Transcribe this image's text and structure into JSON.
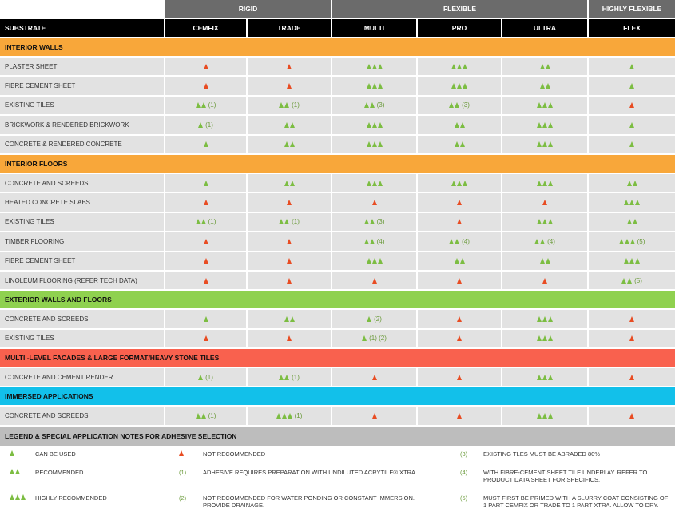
{
  "groups": {
    "rigid": "RIGID",
    "flexible": "FLEXIBLE",
    "highly_flexible": "HIGHLY FLEXIBLE"
  },
  "headers": [
    "SUBSTRATE",
    "CEMFIX",
    "TRADE",
    "MULTI",
    "PRO",
    "ULTRA",
    "FLEX"
  ],
  "colors": {
    "green_triangle": "#7cbd42",
    "red_triangle": "#e84c22",
    "header_bg": "#000000",
    "group_bg": "#6b6b6b",
    "row_bg": "#e2e2e2",
    "legend_bg": "#bdbdbd"
  },
  "sections": [
    {
      "title": "INTERIOR WALLS",
      "color": "#f8a73a",
      "rows": [
        {
          "name": "PLASTER SHEET",
          "cells": [
            [
              "r",
              ""
            ],
            [
              "r",
              ""
            ],
            [
              "g3",
              ""
            ],
            [
              "g3",
              ""
            ],
            [
              "g2",
              ""
            ],
            [
              "g1",
              ""
            ]
          ]
        },
        {
          "name": "FIBRE CEMENT SHEET",
          "cells": [
            [
              "r",
              ""
            ],
            [
              "r",
              ""
            ],
            [
              "g3",
              ""
            ],
            [
              "g3",
              ""
            ],
            [
              "g2",
              ""
            ],
            [
              "g1",
              ""
            ]
          ]
        },
        {
          "name": "EXISTING TILES",
          "cells": [
            [
              "g2",
              "(1)"
            ],
            [
              "g2",
              "(1)"
            ],
            [
              "g2",
              "(3)"
            ],
            [
              "g2",
              "(3)"
            ],
            [
              "g3",
              ""
            ],
            [
              "r",
              ""
            ]
          ]
        },
        {
          "name": "BRICKWORK & RENDERED BRICKWORK",
          "cells": [
            [
              "g1",
              "(1)"
            ],
            [
              "g2",
              ""
            ],
            [
              "g3",
              ""
            ],
            [
              "g2",
              ""
            ],
            [
              "g3",
              ""
            ],
            [
              "g1",
              ""
            ]
          ]
        },
        {
          "name": "CONCRETE & RENDERED CONCRETE",
          "cells": [
            [
              "g1",
              ""
            ],
            [
              "g2",
              ""
            ],
            [
              "g3",
              ""
            ],
            [
              "g2",
              ""
            ],
            [
              "g3",
              ""
            ],
            [
              "g1",
              ""
            ]
          ]
        }
      ]
    },
    {
      "title": "INTERIOR FLOORS",
      "color": "#f8a73a",
      "rows": [
        {
          "name": "CONCRETE AND SCREEDS",
          "cells": [
            [
              "g1",
              ""
            ],
            [
              "g2",
              ""
            ],
            [
              "g3",
              ""
            ],
            [
              "g3",
              ""
            ],
            [
              "g3",
              ""
            ],
            [
              "g2",
              ""
            ]
          ]
        },
        {
          "name": "HEATED CONCRETE SLABS",
          "cells": [
            [
              "r",
              ""
            ],
            [
              "r",
              ""
            ],
            [
              "r",
              ""
            ],
            [
              "r",
              ""
            ],
            [
              "r",
              ""
            ],
            [
              "g3",
              ""
            ]
          ]
        },
        {
          "name": "EXISTING TILES",
          "cells": [
            [
              "g2",
              "(1)"
            ],
            [
              "g2",
              "(1)"
            ],
            [
              "g2",
              "(3)"
            ],
            [
              "r",
              ""
            ],
            [
              "g3",
              ""
            ],
            [
              "g2",
              ""
            ]
          ]
        },
        {
          "name": "TIMBER FLOORING",
          "cells": [
            [
              "r",
              ""
            ],
            [
              "r",
              ""
            ],
            [
              "g2",
              "(4)"
            ],
            [
              "g2",
              "(4)"
            ],
            [
              "g2",
              "(4)"
            ],
            [
              "g3",
              "(5)"
            ]
          ]
        },
        {
          "name": "FIBRE CEMENT SHEET",
          "cells": [
            [
              "r",
              ""
            ],
            [
              "r",
              ""
            ],
            [
              "g3",
              ""
            ],
            [
              "g2",
              ""
            ],
            [
              "g2",
              ""
            ],
            [
              "g3",
              ""
            ]
          ]
        },
        {
          "name": "LINOLEUM FLOORING (REFER TECH DATA)",
          "cells": [
            [
              "r",
              ""
            ],
            [
              "r",
              ""
            ],
            [
              "r",
              ""
            ],
            [
              "r",
              ""
            ],
            [
              "r",
              ""
            ],
            [
              "g2",
              "(5)"
            ]
          ]
        }
      ]
    },
    {
      "title": "EXTERIOR WALLS AND FLOORS",
      "color": "#8fd14f",
      "rows": [
        {
          "name": "CONCRETE AND SCREEDS",
          "cells": [
            [
              "g1",
              ""
            ],
            [
              "g2",
              ""
            ],
            [
              "g1",
              "(2)"
            ],
            [
              "r",
              ""
            ],
            [
              "g3",
              ""
            ],
            [
              "r",
              ""
            ]
          ]
        },
        {
          "name": "EXISTING TILES",
          "cells": [
            [
              "r",
              ""
            ],
            [
              "r",
              ""
            ],
            [
              "g1",
              "(1) (2)"
            ],
            [
              "r",
              ""
            ],
            [
              "g3",
              ""
            ],
            [
              "r",
              ""
            ]
          ]
        }
      ]
    },
    {
      "title": "MULTI -LEVEL FACADES & LARGE FORMAT/HEAVY STONE TILES",
      "color": "#f9614e",
      "rows": [
        {
          "name": "CONCRETE AND CEMENT RENDER",
          "cells": [
            [
              "g1",
              "(1)"
            ],
            [
              "g2",
              "(1)"
            ],
            [
              "r",
              ""
            ],
            [
              "r",
              ""
            ],
            [
              "g3",
              ""
            ],
            [
              "r",
              ""
            ]
          ]
        }
      ]
    },
    {
      "title": "IMMERSED APPLICATIONS",
      "color": "#12c0ea",
      "rows": [
        {
          "name": "CONCRETE AND SCREEDS",
          "cells": [
            [
              "g2",
              "(1)"
            ],
            [
              "g3",
              "(1)"
            ],
            [
              "r",
              ""
            ],
            [
              "r",
              ""
            ],
            [
              "g3",
              ""
            ],
            [
              "r",
              ""
            ]
          ]
        }
      ]
    }
  ],
  "legend": {
    "title": "LEGEND & SPECIAL APPLICATION NOTES FOR ADHESIVE SELECTION",
    "can_be_used": "CAN BE USED",
    "recommended": "RECOMMENDED",
    "highly_recommended": "HIGHLY RECOMMENDED",
    "not_recommended": "NOT RECOMMENDED",
    "note1_num": "(1)",
    "note1": "ADHESIVE REQUIRES PREPARATION WITH UNDILUTED ACRYTILE® XTRA",
    "note2_num": "(2)",
    "note2": "NOT RECOMMENDED FOR WATER PONDING OR CONSTANT IMMERSION. PROVIDE DRAINAGE.",
    "note3_num": "(3)",
    "note3": "EXISTING TLES MUST BE ABRADED 80%",
    "note4_num": "(4)",
    "note4": "WITH FIBRE-CEMENT SHEET TILE UNDERLAY.  REFER TO PRODUCT DATA SHEET FOR SPECIFICS.",
    "note5_num": "(5)",
    "note5": "MUST FIRST BE PRIMED WITH A SLURRY COAT CONSISTING OF 1 PART CEMFIX OR TRADE TO 1 PART XTRA.  ALLOW TO DRY."
  }
}
